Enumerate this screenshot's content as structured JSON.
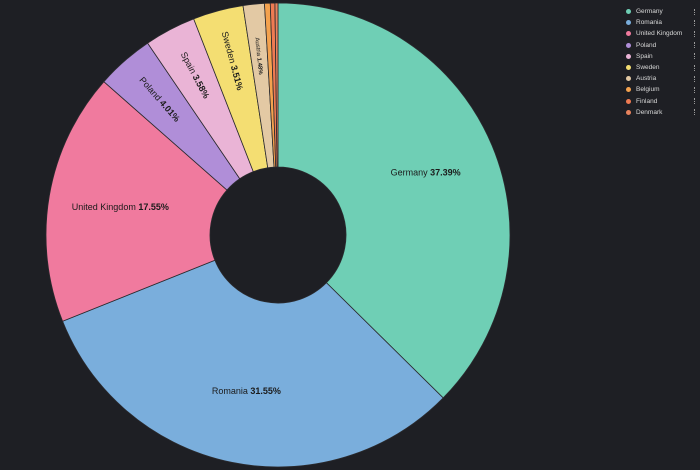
{
  "chart_data": {
    "type": "pie",
    "donut": true,
    "categories": [
      "Germany",
      "Romania",
      "United Kingdom",
      "Poland",
      "Spain",
      "Sweden",
      "Austria",
      "Belgium",
      "Finland",
      "Denmark"
    ],
    "values": [
      37.39,
      31.55,
      17.55,
      4.01,
      3.58,
      3.51,
      1.48,
      0.4,
      0.32,
      0.21
    ],
    "value_labels": [
      "37.39%",
      "31.55%",
      "17.55%",
      "4.01%",
      "3.58%",
      "3.51%",
      "1.48%",
      "",
      "",
      ""
    ],
    "colors": [
      "#6fcfb5",
      "#7aaedc",
      "#f07a9e",
      "#b08ed8",
      "#eab4d6",
      "#f4de72",
      "#e3c9a4",
      "#f4a24e",
      "#ef7b52",
      "#e8835d"
    ],
    "legend": {
      "placement": "top-right",
      "items": [
        "Germany",
        "Romania",
        "United Kingdom",
        "Poland",
        "Spain",
        "Sweden",
        "Austria",
        "Belgium",
        "Finland",
        "Denmark"
      ]
    }
  }
}
